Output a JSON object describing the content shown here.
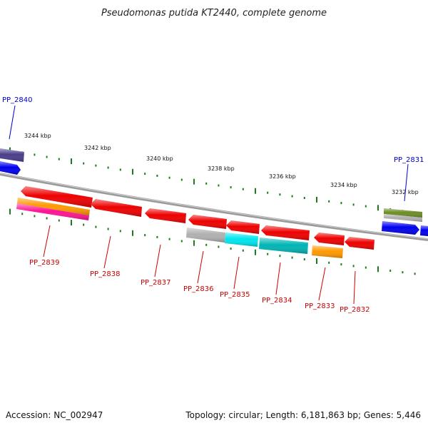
{
  "title": "Pseudomonas putida KT2440, complete genome",
  "footer": {
    "accession": "Accession: NC_002947",
    "summary": "Topology: circular; Length: 6,181,863 bp; Genes: 5,446"
  },
  "colors": {
    "backbone": "#808080",
    "tick": "#1e7a1e",
    "label_red": "#cc0000",
    "label_blue": "#0000cc"
  },
  "scale": [
    {
      "label": "3244 kbp"
    },
    {
      "label": "3242 kbp"
    },
    {
      "label": "3240 kbp"
    },
    {
      "label": "3238 kbp"
    },
    {
      "label": "3236 kbp"
    },
    {
      "label": "3234 kbp"
    },
    {
      "label": "3232 kbp"
    }
  ],
  "labels": [
    {
      "text": "PP_2840",
      "color": "blue"
    },
    {
      "text": "PP_2831",
      "color": "blue"
    },
    {
      "text": "PP_2839",
      "color": "red"
    },
    {
      "text": "PP_2838",
      "color": "red"
    },
    {
      "text": "PP_2837",
      "color": "red"
    },
    {
      "text": "PP_2836",
      "color": "red"
    },
    {
      "text": "PP_2835",
      "color": "red"
    },
    {
      "text": "PP_2834",
      "color": "red"
    },
    {
      "text": "PP_2833",
      "color": "red"
    },
    {
      "text": "PP_2832",
      "color": "red"
    }
  ],
  "features": [
    {
      "name": "PP_2840-gene",
      "color": "#4a3e8a",
      "dir": "forward"
    },
    {
      "name": "PP_2840-gene-lower",
      "color": "#0000ee",
      "dir": "forward"
    },
    {
      "name": "PP_2839-gene",
      "color": "#ee0000",
      "dir": "reverse"
    },
    {
      "name": "PP_2839-feature-orange",
      "color": "#ff9900",
      "dir": "none"
    },
    {
      "name": "PP_2839-feature-magenta",
      "color": "#ff1493",
      "dir": "none"
    },
    {
      "name": "PP_2838-gene",
      "color": "#ee0000",
      "dir": "reverse"
    },
    {
      "name": "PP_2837-gene",
      "color": "#ee0000",
      "dir": "reverse"
    },
    {
      "name": "PP_2836-gene",
      "color": "#ee0000",
      "dir": "reverse"
    },
    {
      "name": "PP_2836-feature-gray",
      "color": "#b0b0b0",
      "dir": "none"
    },
    {
      "name": "PP_2835-gene",
      "color": "#ee0000",
      "dir": "reverse"
    },
    {
      "name": "PP_2835-feature-cyan",
      "color": "#00e5ee",
      "dir": "none"
    },
    {
      "name": "PP_2834-gene",
      "color": "#ee0000",
      "dir": "reverse"
    },
    {
      "name": "PP_2834-feature-teal",
      "color": "#00b5b5",
      "dir": "none"
    },
    {
      "name": "PP_2833-gene",
      "color": "#ee0000",
      "dir": "reverse"
    },
    {
      "name": "PP_2833-feature-orange",
      "color": "#ff9900",
      "dir": "none"
    },
    {
      "name": "PP_2832-gene",
      "color": "#ee0000",
      "dir": "reverse"
    },
    {
      "name": "PP_2831-feature-green",
      "color": "#6b8e23",
      "dir": "none"
    },
    {
      "name": "PP_2831-feature-gray",
      "color": "#b0b0b0",
      "dir": "none"
    },
    {
      "name": "PP_2831-gene",
      "color": "#0000ee",
      "dir": "forward"
    },
    {
      "name": "PP_2830-gene-edge",
      "color": "#0000ee",
      "dir": "forward"
    }
  ]
}
